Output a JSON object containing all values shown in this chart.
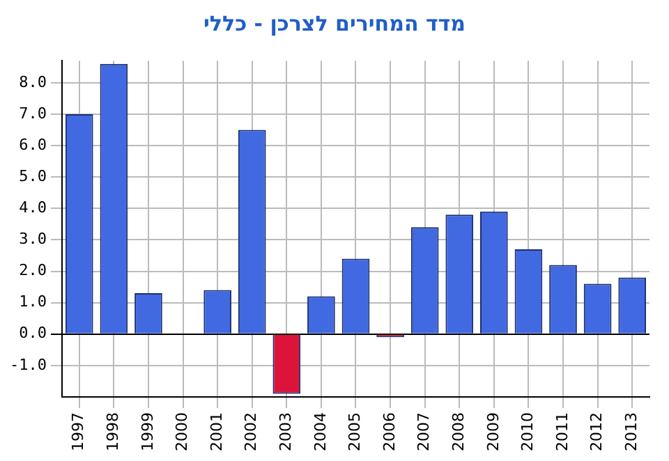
{
  "chart_data": {
    "type": "bar",
    "title": "מדד המחירים לצרכן - כללי",
    "categories": [
      "1997",
      "1998",
      "1999",
      "2000",
      "2001",
      "2002",
      "2003",
      "2004",
      "2005",
      "2006",
      "2007",
      "2008",
      "2009",
      "2010",
      "2011",
      "2012",
      "2013"
    ],
    "values": [
      7.0,
      8.6,
      1.3,
      0.0,
      1.4,
      6.5,
      -1.9,
      1.2,
      2.4,
      -0.1,
      3.4,
      3.8,
      3.9,
      2.7,
      2.2,
      1.6,
      1.8
    ],
    "colors": [
      "#4169e1",
      "#4169e1",
      "#4169e1",
      "#4169e1",
      "#4169e1",
      "#4169e1",
      "#dc143c",
      "#4169e1",
      "#4169e1",
      "#dc143c",
      "#4169e1",
      "#4169e1",
      "#4169e1",
      "#4169e1",
      "#4169e1",
      "#4169e1",
      "#4169e1"
    ],
    "ylim": [
      -2,
      8.7
    ],
    "yticks": [
      {
        "value": -1,
        "label": "-1.0"
      },
      {
        "value": 0,
        "label": "0.0"
      },
      {
        "value": 1,
        "label": "1.0"
      },
      {
        "value": 2,
        "label": "2.0"
      },
      {
        "value": 3,
        "label": "3.0"
      },
      {
        "value": 4,
        "label": "4.0"
      },
      {
        "value": 5,
        "label": "5.0"
      },
      {
        "value": 6,
        "label": "6.0"
      },
      {
        "value": 7,
        "label": "7.0"
      },
      {
        "value": 8,
        "label": "8.0"
      }
    ],
    "grid": true,
    "legend": false
  }
}
